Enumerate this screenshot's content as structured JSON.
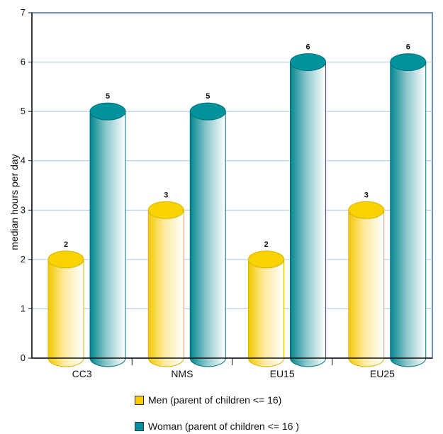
{
  "chart_data": {
    "type": "bar",
    "style": "3d-cylinder",
    "categories": [
      "CC3",
      "NMS",
      "EU15",
      "EU25"
    ],
    "series": [
      {
        "name": "Men (parent of children <= 16)",
        "values": [
          2,
          3,
          2,
          3
        ],
        "color": "#f5cf00"
      },
      {
        "name": "Woman (parent of children <= 16 )",
        "values": [
          5,
          5,
          6,
          6
        ],
        "color": "#00909a"
      }
    ],
    "data_labels": [
      [
        "2",
        "3",
        "2",
        "3"
      ],
      [
        "5",
        "5",
        "6",
        "6"
      ]
    ],
    "ylabel": "median hours per day",
    "xlabel": "",
    "ylim": [
      0,
      7
    ],
    "yticks": [
      "0",
      "1",
      "2",
      "3",
      "4",
      "5",
      "6",
      "7"
    ],
    "grid": true,
    "legend_position": "bottom"
  }
}
